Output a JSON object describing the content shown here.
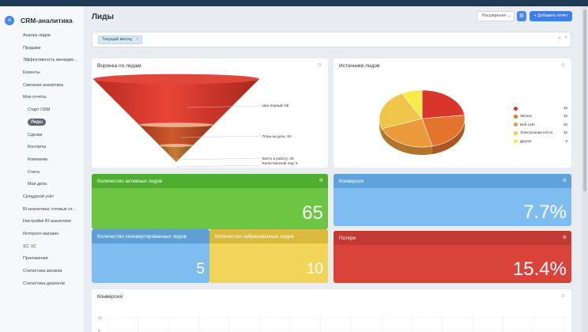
{
  "app": {
    "title": "CRM-аналитика",
    "close_glyph": "×"
  },
  "sidebar": {
    "items": [
      {
        "label": "Анализ лидов",
        "sub": false,
        "active": false
      },
      {
        "label": "Продажи",
        "sub": false,
        "active": false
      },
      {
        "label": "Эффективность менедже...",
        "sub": false,
        "active": false
      },
      {
        "label": "Клиенты",
        "sub": false,
        "active": false
      },
      {
        "label": "Сквозная аналитика",
        "sub": false,
        "active": false
      },
      {
        "label": "Мои отчёты",
        "sub": false,
        "active": false
      },
      {
        "label": "Старт CRM",
        "sub": true,
        "active": false
      },
      {
        "label": "Лиды",
        "sub": true,
        "active": true
      },
      {
        "label": "Сделки",
        "sub": true,
        "active": false
      },
      {
        "label": "Контакты",
        "sub": true,
        "active": false
      },
      {
        "label": "Компании",
        "sub": true,
        "active": false
      },
      {
        "label": "Счета",
        "sub": true,
        "active": false
      },
      {
        "label": "Мои дела",
        "sub": true,
        "active": false
      },
      {
        "label": "Складской учёт",
        "sub": false,
        "active": false
      },
      {
        "label": "BI-аналитика: готовые от...",
        "sub": false,
        "active": false
      },
      {
        "label": "Настройки BI-аналитики",
        "sub": false,
        "active": false
      },
      {
        "label": "Интернет-магазин",
        "sub": false,
        "active": false
      },
      {
        "label": "1С: 1С",
        "sub": false,
        "active": false
      },
      {
        "label": "Приложения",
        "sub": false,
        "active": false
      },
      {
        "label": "Статистика звонков",
        "sub": false,
        "active": false
      },
      {
        "label": "Статистика диалогов",
        "sub": false,
        "active": false
      }
    ]
  },
  "header": {
    "title": "Лиды",
    "extensions_label": "Расширения",
    "add_report_label": "Добавить отчёт"
  },
  "filter": {
    "chip_label": "Текущий месяц"
  },
  "funnel": {
    "title": "Воронка по лидам",
    "stages": [
      {
        "label": "Шаг первый: 65",
        "value": 65,
        "color": "#d9352a"
      },
      {
        "label": "План на день: 50",
        "value": 50,
        "color": "#c04a24"
      },
      {
        "label": "Взято в работу: 25",
        "value": 25,
        "color": "#b5692c"
      },
      {
        "label": "Качественный лид: 5",
        "value": 5,
        "color": "#c79a36"
      }
    ]
  },
  "sources": {
    "title": "Источники лидов",
    "chart_data": {
      "type": "pie",
      "title": "Источники лидов",
      "legend_position": "right",
      "slices": [
        {
          "name": "",
          "value": 15,
          "color": "#d9352a"
        },
        {
          "name": "Звонок",
          "value": 15,
          "color": "#e4732e"
        },
        {
          "name": "Веб-сайт",
          "value": 15,
          "color": "#eb9a3b"
        },
        {
          "name": "Электронная почта",
          "value": 15,
          "color": "#f0c64a"
        },
        {
          "name": "Другое",
          "value": 5,
          "color": "#f5ec4a"
        }
      ]
    }
  },
  "kpis": {
    "active": {
      "title": "Количество активных лидов",
      "value": "65",
      "color": "#6cc644",
      "header_color": "#4fae32"
    },
    "conversion": {
      "title": "Конверсия",
      "value": "7.7%",
      "color": "#7fbdf0",
      "header_color": "#5fa3dc"
    },
    "converted": {
      "title": "Количество сконвертированных лидов",
      "value": "5",
      "color": "#7fbdf0",
      "header_color": "#5f9fd6"
    },
    "rejected": {
      "title": "Количество забракованных лидов",
      "value": "10",
      "color": "#f0d55a",
      "header_color": "#d8bb3c"
    },
    "losses": {
      "title": "Потери",
      "value": "15.4%",
      "color": "#d9433a",
      "header_color": "#c23a33"
    }
  },
  "conversion_chart": {
    "title": "Конверсия",
    "chart_data": {
      "type": "line",
      "title": "Конверсия",
      "y_ticks": [
        "10",
        "8"
      ],
      "grid": true
    }
  }
}
